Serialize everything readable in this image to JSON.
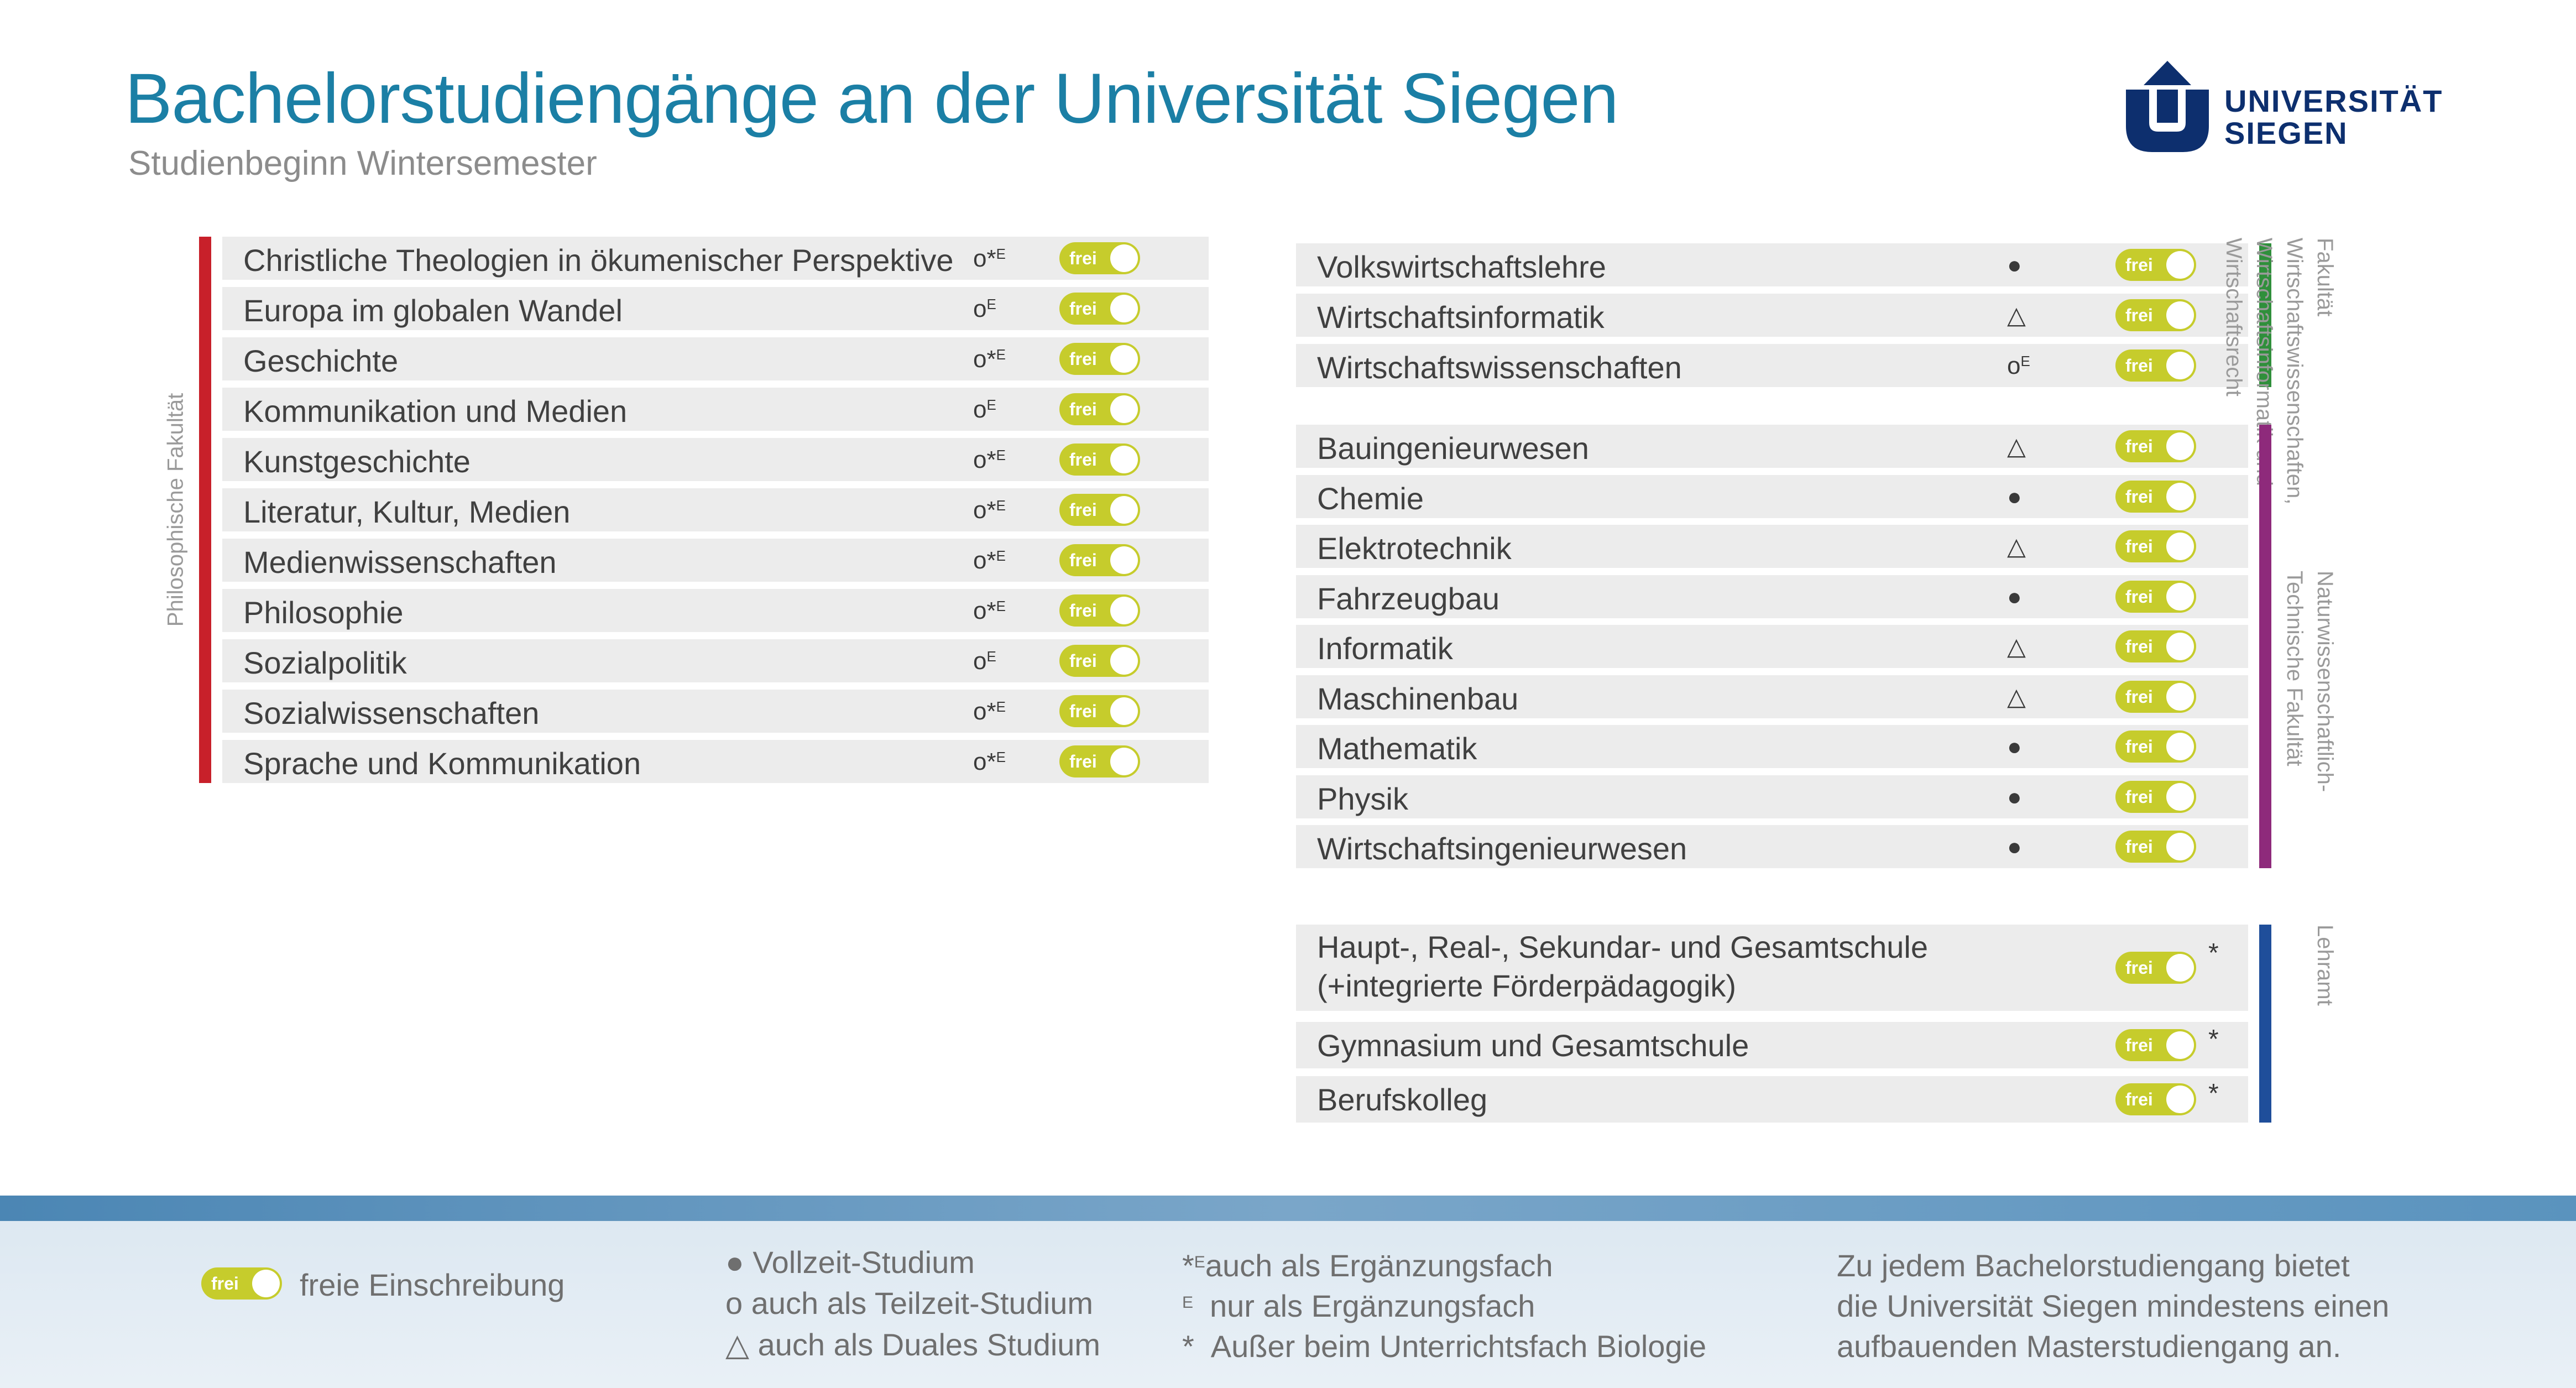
{
  "header": {
    "title_part1": "Bachelorstudiengänge an der ",
    "title_part2": "Universität Siegen",
    "subtitle": "Studienbeginn Wintersemester",
    "logo_line1": "UNIVERSITÄT",
    "logo_line2": "SIEGEN"
  },
  "colors": {
    "title": "#1b7fa5",
    "toggle": "#c6cc2c",
    "philosophische": "#c8202a",
    "wirtschaft": "#2f8f3b",
    "natur": "#8e2a7b",
    "lehramt": "#1f4e9a",
    "logo": "#0d2f6e"
  },
  "toggle_label": "frei",
  "faculties": {
    "philosophische": {
      "label": "Philosophische Fakultät",
      "programs": [
        {
          "name": "Christliche Theologien in ökumenischer Perspektive",
          "mark": "o*",
          "sup": "E"
        },
        {
          "name": "Europa im globalen Wandel",
          "mark": "o",
          "sup": "E"
        },
        {
          "name": "Geschichte",
          "mark": "o*",
          "sup": "E"
        },
        {
          "name": "Kommunikation und Medien",
          "mark": "o",
          "sup": "E"
        },
        {
          "name": "Kunstgeschichte",
          "mark": "o*",
          "sup": "E"
        },
        {
          "name": "Literatur, Kultur, Medien",
          "mark": "o*",
          "sup": "E"
        },
        {
          "name": "Medienwissenschaften",
          "mark": "o*",
          "sup": "E"
        },
        {
          "name": "Philosophie",
          "mark": "o*",
          "sup": "E"
        },
        {
          "name": "Sozialpolitik",
          "mark": "o",
          "sup": "E"
        },
        {
          "name": "Sozialwissenschaften",
          "mark": "o*",
          "sup": "E"
        },
        {
          "name": "Sprache und Kommunikation",
          "mark": "o*",
          "sup": "E"
        }
      ]
    },
    "wirtschaft": {
      "label": "Fakultät\nWirtschaftswissenschaften,\nWirtschaftsinformatik und\nWirtschaftsrecht",
      "programs": [
        {
          "name": "Volkswirtschaftslehre",
          "mark": "●",
          "sup": ""
        },
        {
          "name": "Wirtschaftsinformatik",
          "mark": "△",
          "sup": ""
        },
        {
          "name": "Wirtschaftswissenschaften",
          "mark": "o",
          "sup": "E"
        }
      ]
    },
    "natur": {
      "label": "Naturwissenschaftlich-\nTechnische Fakultät",
      "programs": [
        {
          "name": "Bauingenieurwesen",
          "mark": "△",
          "sup": ""
        },
        {
          "name": "Chemie",
          "mark": "●",
          "sup": ""
        },
        {
          "name": "Elektrotechnik",
          "mark": "△",
          "sup": ""
        },
        {
          "name": "Fahrzeugbau",
          "mark": "●",
          "sup": ""
        },
        {
          "name": "Informatik",
          "mark": "△",
          "sup": ""
        },
        {
          "name": "Maschinenbau",
          "mark": "△",
          "sup": ""
        },
        {
          "name": "Mathematik",
          "mark": "●",
          "sup": ""
        },
        {
          "name": "Physik",
          "mark": "●",
          "sup": ""
        },
        {
          "name": "Wirtschaftsingenieurwesen",
          "mark": "●",
          "sup": ""
        }
      ]
    },
    "lehramt": {
      "label": "Lehramt",
      "programs": [
        {
          "name_line1": "Haupt-, Real-, Sekundar- und Gesamtschule",
          "name_line2": "(+integrierte Förderpädagogik)",
          "star": "*"
        },
        {
          "name": "Gymnasium und Gesamtschule",
          "star": "*"
        },
        {
          "name": "Berufskolleg",
          "star": "*"
        }
      ]
    }
  },
  "legend": {
    "toggle_text": "freie Einschreibung",
    "col2": [
      "● Vollzeit-Studium",
      "o auch als Teilzeit-Studium",
      "△ auch als Duales Studium"
    ],
    "col3": [
      {
        "sym": "*",
        "sup": "E",
        "text": "auch als Ergänzungsfach"
      },
      {
        "sym": "",
        "sup": "E",
        "text": "nur als Ergänzungsfach"
      },
      {
        "sym": "*",
        "sup": "",
        "text": "Außer beim Unterrichtsfach Biologie"
      }
    ],
    "col4": [
      "Zu jedem Bachelorstudiengang bietet",
      "die Universität Siegen mindestens einen",
      "aufbauenden Masterstudiengang an."
    ]
  }
}
